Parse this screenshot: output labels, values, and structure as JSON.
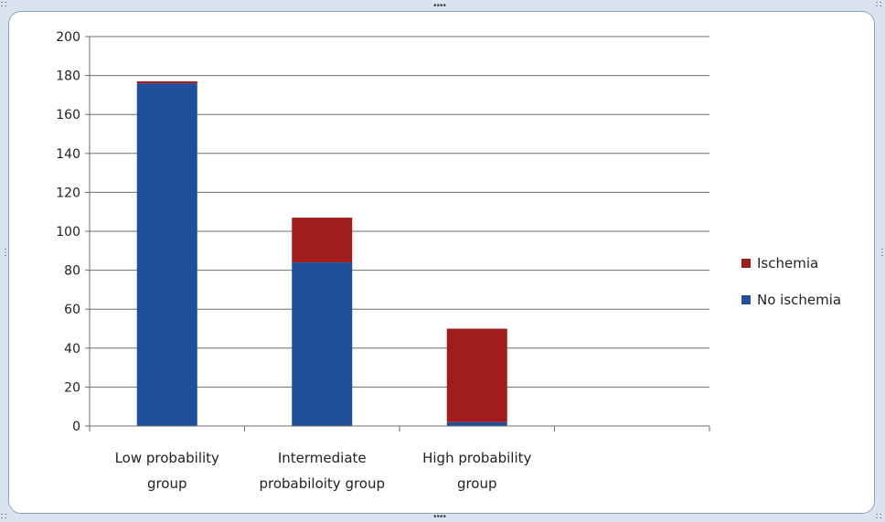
{
  "chart_data": {
    "type": "bar",
    "stacked": true,
    "categories": [
      [
        "Low probability",
        "group"
      ],
      [
        "Intermediate",
        "probabiloity group"
      ],
      [
        "High probability",
        "group"
      ],
      [
        "",
        ""
      ]
    ],
    "series": [
      {
        "name": "No ischemia",
        "values": [
          176,
          84,
          2,
          null
        ],
        "color": "#1f4e9a"
      },
      {
        "name": "Ischemia",
        "values": [
          1,
          23,
          48,
          null
        ],
        "color": "#a11d1d"
      }
    ],
    "y_ticks": [
      "0",
      "20",
      "40",
      "60",
      "80",
      "100",
      "120",
      "140",
      "160",
      "180",
      "200"
    ],
    "ylim": [
      0,
      200
    ],
    "grid": true,
    "legend_position": "right",
    "legend_order": [
      "Ischemia",
      "No ischemia"
    ]
  },
  "icons": {
    "resize_handle": "resize-handle-icon"
  }
}
